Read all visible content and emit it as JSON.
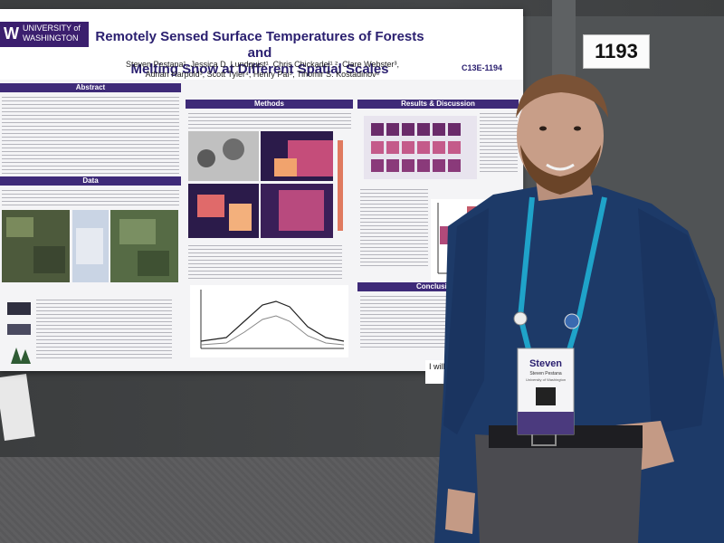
{
  "poster": {
    "university_line1": "UNIVERSITY of",
    "university_line2": "WASHINGTON",
    "title_line1": "Remotely Sensed Surface Temperatures of Forests and",
    "title_line2": "Melting Snow at Different Spatial Scales",
    "authors_line1": "Steven Pestana¹, Jessica D. Lundquist¹, Chris Chickadel¹,², Clare Webster³,",
    "authors_line2": "Adrian Harpold³, Scott Tyler⁴, Henry Pai⁵, Tihomir S. Kostadinov⁶",
    "session_code": "C13E-1194",
    "sections": {
      "abstract": "Abstract",
      "methods": "Methods",
      "results": "Results & Discussion",
      "data": "Data",
      "conclusions": "Conclusions"
    }
  },
  "booth": {
    "number": "1193",
    "small_sign": "I will"
  },
  "badge": {
    "name": "Steven",
    "full_name": "Steven Pestana",
    "affiliation": "University of Washington"
  },
  "colors": {
    "uw_purple": "#3b1f6e",
    "shirt_blue": "#1d3a68",
    "lanyard_teal": "#1fa3c9"
  }
}
